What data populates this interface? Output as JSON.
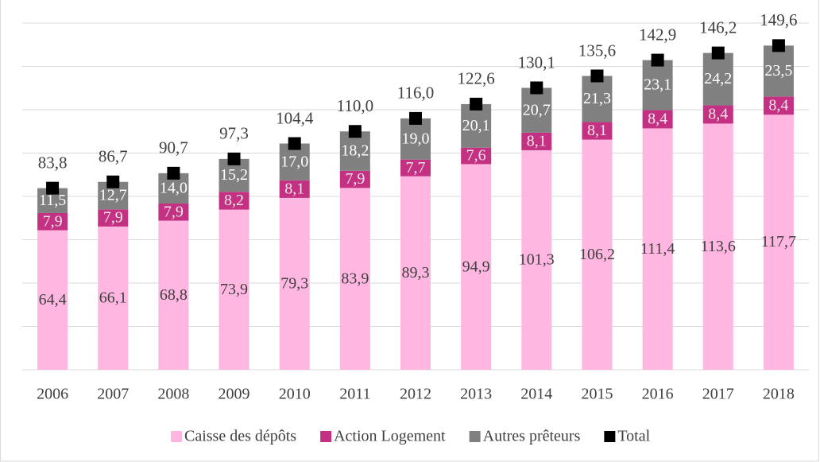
{
  "chart_data": {
    "type": "bar",
    "stacked": true,
    "categories": [
      "2006",
      "2007",
      "2008",
      "2009",
      "2010",
      "2011",
      "2012",
      "2013",
      "2014",
      "2015",
      "2016",
      "2017",
      "2018"
    ],
    "series": [
      {
        "name": "Caisse des dépôts",
        "color": "#ffb6e1",
        "values": [
          64.4,
          66.1,
          68.8,
          73.9,
          79.3,
          83.9,
          89.3,
          94.9,
          101.3,
          106.2,
          111.4,
          113.6,
          117.7
        ],
        "value_labels": [
          "64,4",
          "66,1",
          "68,8",
          "73,9",
          "79,3",
          "83,9",
          "89,3",
          "94,9",
          "101,3",
          "106,2",
          "111,4",
          "113,6",
          "117,7"
        ]
      },
      {
        "name": "Action Logement",
        "color": "#c43182",
        "values": [
          7.9,
          7.9,
          7.9,
          8.2,
          8.1,
          7.9,
          7.7,
          7.6,
          8.1,
          8.1,
          8.4,
          8.4,
          8.4
        ],
        "value_labels": [
          "7,9",
          "7,9",
          "7,9",
          "8,2",
          "8,1",
          "7,9",
          "7,7",
          "7,6",
          "8,1",
          "8,1",
          "8,4",
          "8,4",
          "8,4"
        ]
      },
      {
        "name": "Autres prêteurs",
        "color": "#808080",
        "values": [
          11.5,
          12.7,
          14.0,
          15.2,
          17.0,
          18.2,
          19.0,
          20.1,
          20.7,
          21.3,
          23.1,
          24.2,
          23.5
        ],
        "value_labels": [
          "11,5",
          "12,7",
          "14,0",
          "15,2",
          "17,0",
          "18,2",
          "19,0",
          "20,1",
          "20,7",
          "21,3",
          "23,1",
          "24,2",
          "23,5"
        ]
      },
      {
        "name": "Total",
        "color": "#000000",
        "marker": "square",
        "values": [
          83.8,
          86.7,
          90.7,
          97.3,
          104.4,
          110.0,
          116.0,
          122.6,
          130.1,
          135.6,
          142.9,
          146.2,
          149.6
        ],
        "value_labels": [
          "83,8",
          "86,7",
          "90,7",
          "97,3",
          "104,4",
          "110,0",
          "116,0",
          "122,6",
          "130,1",
          "135,6",
          "142,9",
          "146,2",
          "149,6"
        ]
      }
    ],
    "ylim": [
      0,
      160
    ],
    "yticks": [
      0,
      20,
      40,
      60,
      80,
      100,
      120,
      140,
      160
    ],
    "grid": true,
    "legend": "bottom"
  }
}
